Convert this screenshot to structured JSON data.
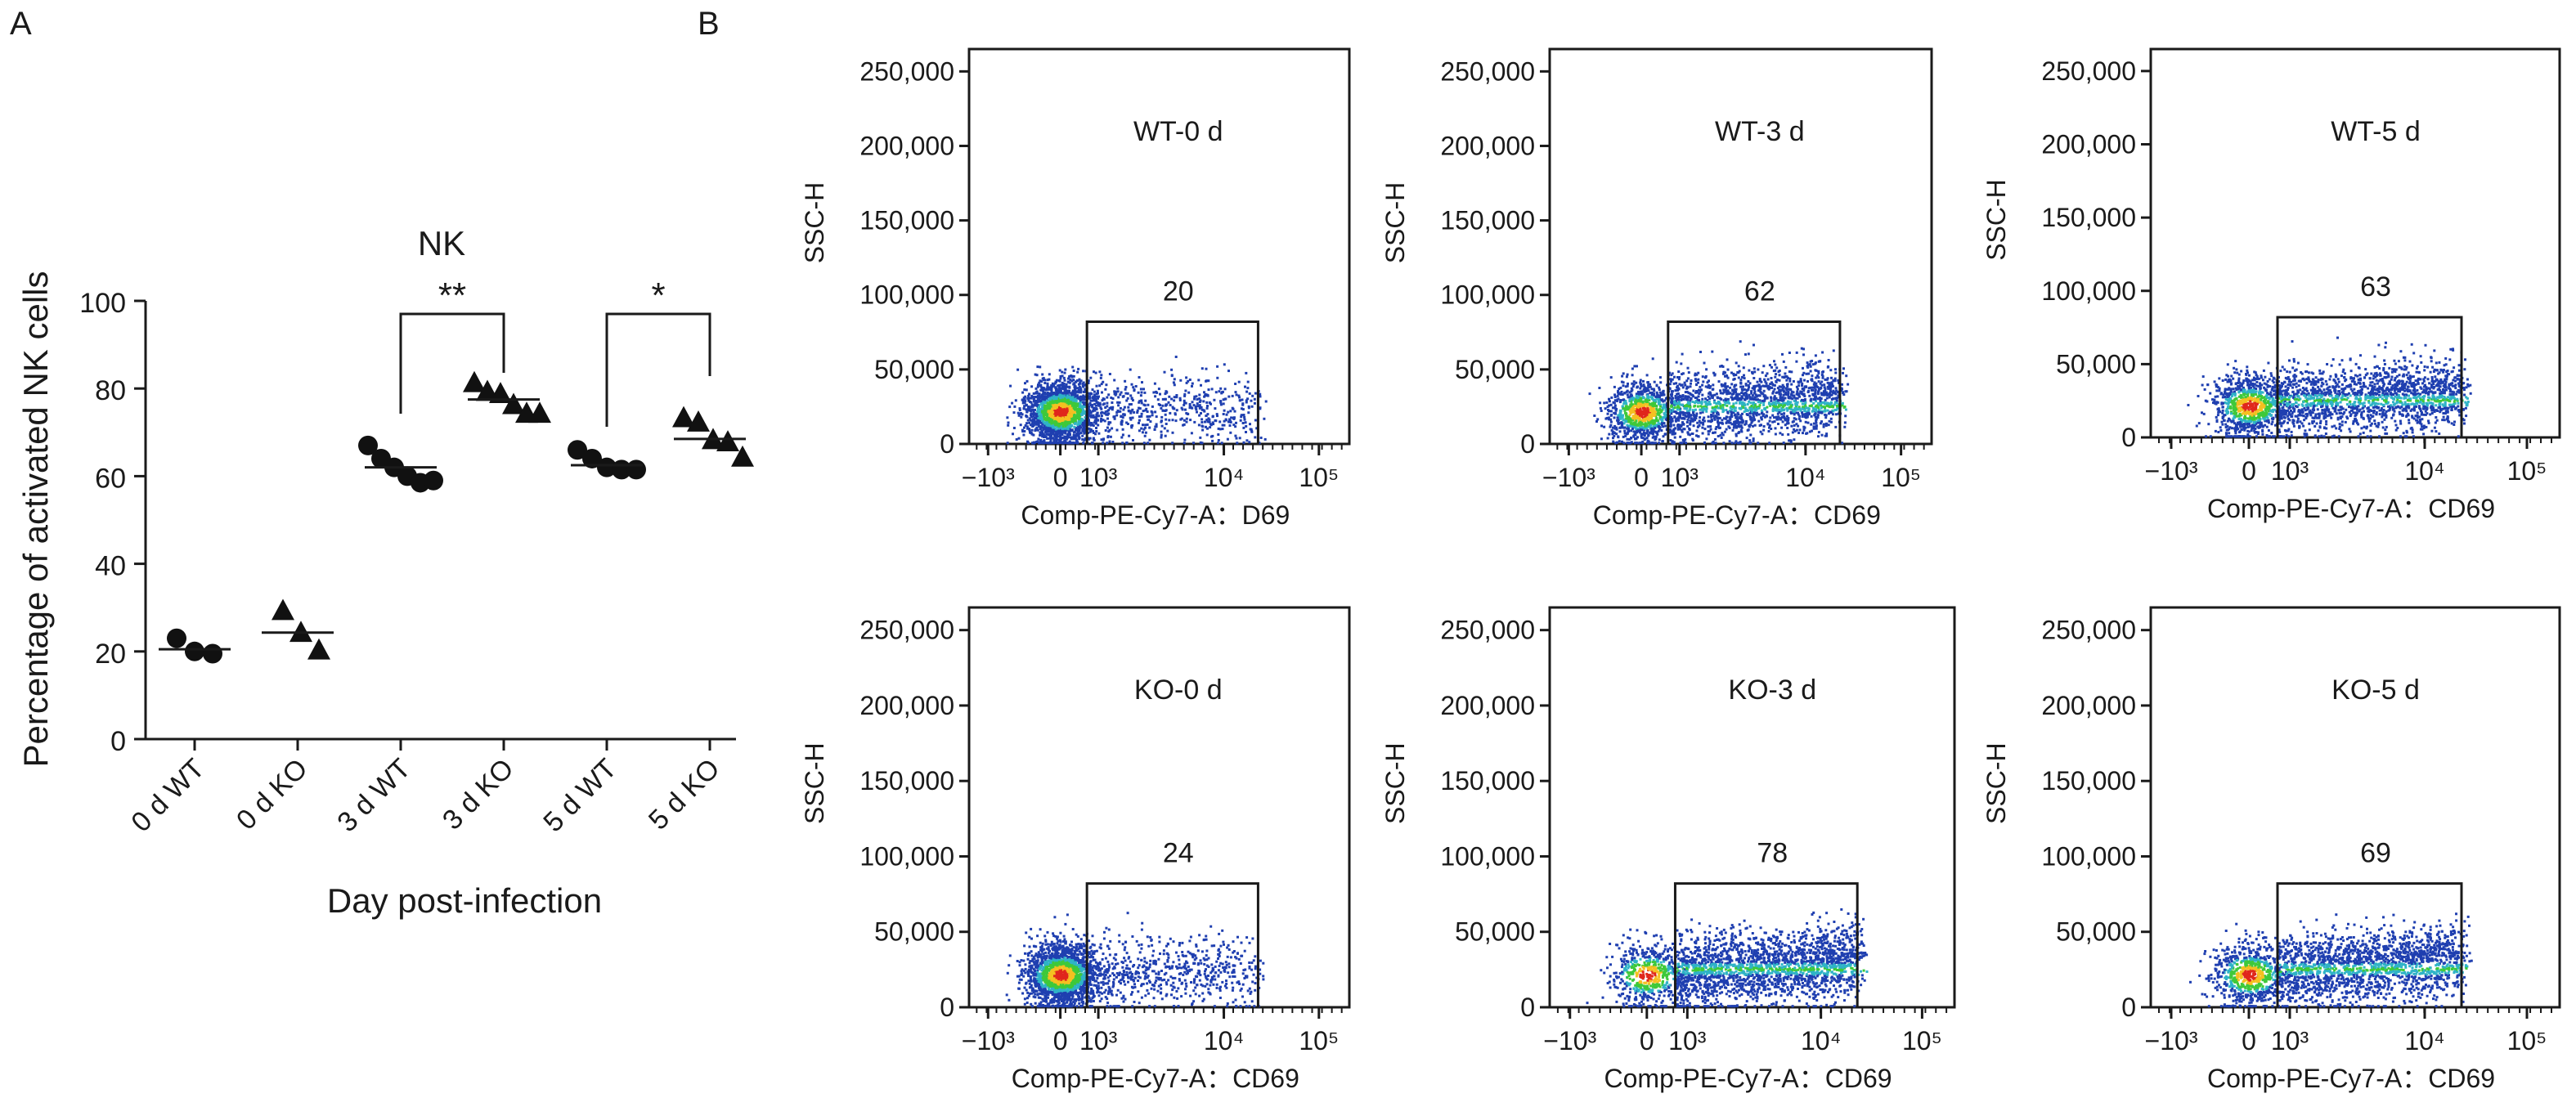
{
  "panels": {
    "a": "A",
    "b": "B"
  },
  "chart_data": [
    {
      "type": "scatter",
      "title": "NK",
      "ylabel": "Percentage of activated NK cells",
      "xlabel": "Day post-infection",
      "ylim": [
        0,
        100
      ],
      "yticks": [
        "0",
        "20",
        "40",
        "60",
        "80",
        "100"
      ],
      "categories": [
        "0 d WT",
        "0 d KO",
        "3 d WT",
        "3 d KO",
        "5 d WT",
        "5 d KO"
      ],
      "markers": [
        "circle",
        "triangle",
        "circle",
        "triangle",
        "circle",
        "triangle"
      ],
      "groups": [
        {
          "points": [
            23,
            20,
            19.5
          ],
          "mean": 20.5
        },
        {
          "points": [
            29,
            24,
            20
          ],
          "mean": 24.3
        },
        {
          "points": [
            67,
            64,
            62,
            60,
            58.5,
            59
          ],
          "mean": 62
        },
        {
          "points": [
            81,
            79,
            78.5,
            76,
            74,
            74
          ],
          "mean": 77.5
        },
        {
          "points": [
            66,
            64,
            62,
            61.5,
            61.5
          ],
          "mean": 62.5
        },
        {
          "points": [
            73,
            72,
            68,
            67.5,
            64
          ],
          "mean": 68.5
        }
      ],
      "significance": [
        {
          "pair": [
            2,
            3
          ],
          "label": "**",
          "y": 92
        },
        {
          "pair": [
            4,
            5
          ],
          "label": "*",
          "y": 92
        }
      ]
    },
    {
      "type": "scatter",
      "plot_kind": "flow-cytometry-density",
      "xlabel": "Comp-PE-Cy7-A：CD69",
      "ylabel": "SSC-H",
      "yticks": [
        "0",
        "50,000",
        "100,000",
        "150,000",
        "200,000",
        "250,000"
      ],
      "xticks": [
        "−10³",
        "0",
        "10³",
        "10⁴",
        "10⁵"
      ],
      "gate_y_max": 82000,
      "panels": [
        {
          "name": "WT-0 d",
          "gate_pct": "20",
          "xlabel": "Comp-PE-Cy7-A：D69"
        },
        {
          "name": "WT-3 d",
          "gate_pct": "62",
          "xlabel": "Comp-PE-Cy7-A：CD69"
        },
        {
          "name": "WT-5 d",
          "gate_pct": "63",
          "xlabel": "Comp-PE-Cy7-A：CD69"
        },
        {
          "name": "KO-0 d",
          "gate_pct": "24",
          "xlabel": "Comp-PE-Cy7-A：CD69"
        },
        {
          "name": "KO-3 d",
          "gate_pct": "78",
          "xlabel": "Comp-PE-Cy7-A：CD69"
        },
        {
          "name": "KO-5 d",
          "gate_pct": "69",
          "xlabel": "Comp-PE-Cy7-A：CD69"
        }
      ]
    }
  ]
}
